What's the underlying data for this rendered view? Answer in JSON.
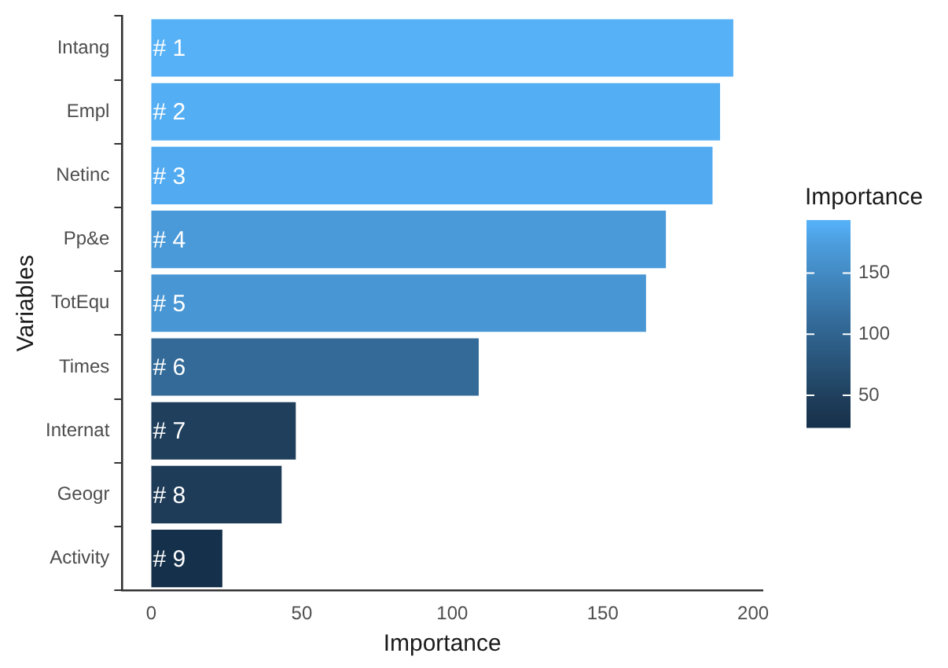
{
  "chart_data": {
    "type": "bar",
    "orientation": "horizontal",
    "xlabel": "Importance",
    "ylabel": "Variables",
    "clabel": "Importance",
    "categories": [
      "Intang",
      "Empl",
      "Netinc",
      "Pp&e",
      "TotEqu",
      "Times",
      "Internat",
      "Geogr",
      "Activity"
    ],
    "values": [
      193.4,
      189,
      186.5,
      171,
      164.4,
      108.8,
      48,
      43.3,
      23.6
    ],
    "colors": [
      "#56b1f7",
      "#54aef3",
      "#52abf0",
      "#4a9ad9",
      "#4896d3",
      "#336a98",
      "#1f3f5c",
      "#1e3b57",
      "#15304a"
    ],
    "annotations": [
      {
        "text": "# 1",
        "y": "Intang"
      },
      {
        "text": "# 2",
        "y": "Empl"
      },
      {
        "text": "# 3",
        "y": "Netinc"
      },
      {
        "text": "# 4",
        "y": "Pp&e"
      },
      {
        "text": "# 5",
        "y": "TotEqu"
      },
      {
        "text": "# 6",
        "y": "Times"
      },
      {
        "text": "# 7",
        "y": "Internat"
      },
      {
        "text": "# 8",
        "y": "Geogr"
      },
      {
        "text": "# 9",
        "y": "Activity"
      }
    ],
    "xlim": [
      -9.7,
      203.1
    ],
    "xticks": [
      0,
      50,
      100,
      150,
      200
    ],
    "clim": [
      23.6,
      193.4
    ],
    "cticks": [
      50,
      100,
      150
    ],
    "grid": false
  }
}
